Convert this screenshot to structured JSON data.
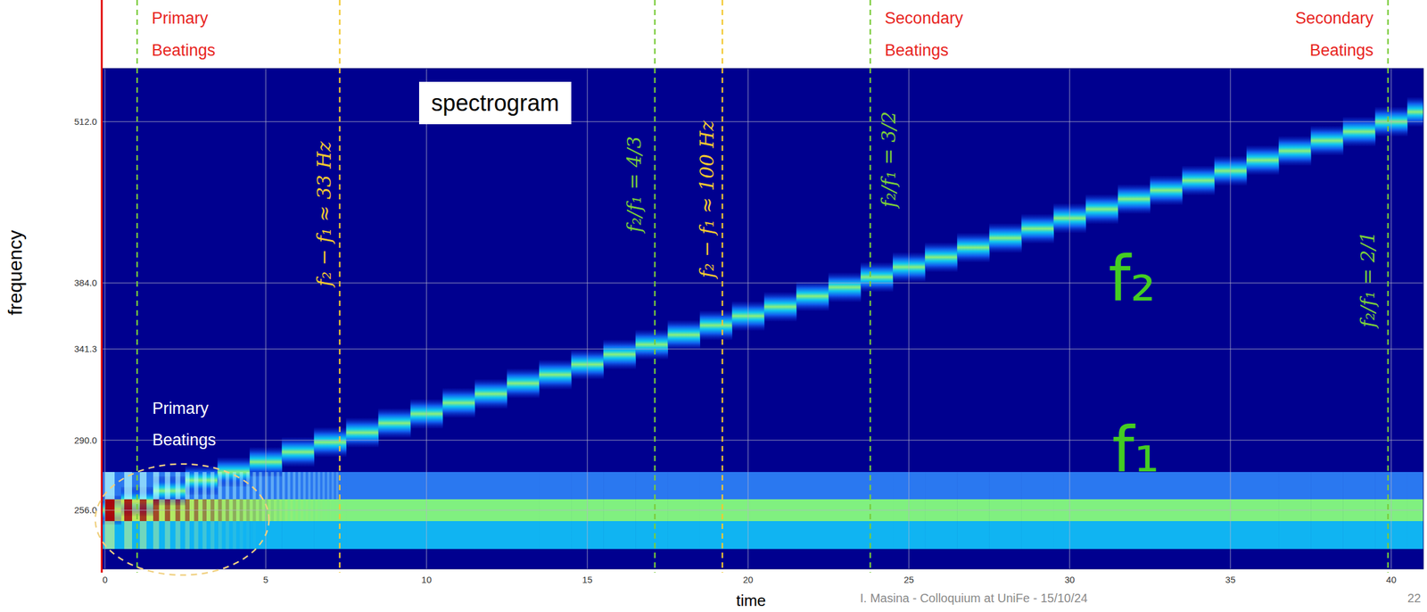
{
  "chart_data": {
    "type": "spectrogram",
    "title": "spectrogram",
    "x_label": "time",
    "y_label": "frequency",
    "x": [
      0,
      1,
      2,
      3,
      4,
      5,
      6,
      7,
      8,
      9,
      10,
      11,
      12,
      13,
      14,
      15,
      16,
      17,
      18,
      19,
      20,
      21,
      22,
      23,
      24,
      25,
      26,
      27,
      28,
      29,
      30,
      31,
      32,
      33,
      34,
      35,
      36,
      37,
      38,
      39,
      40,
      41
    ],
    "series": [
      {
        "name": "f₁",
        "color": "#80f080",
        "values": [
          256,
          256,
          256,
          256,
          256,
          256,
          256,
          256,
          256,
          256,
          256,
          256,
          256,
          256,
          256,
          256,
          256,
          256,
          256,
          256,
          256,
          256,
          256,
          256,
          256,
          256,
          256,
          256,
          256,
          256,
          256,
          256,
          256,
          256,
          256,
          256,
          256,
          256,
          256,
          256,
          256,
          256
        ]
      },
      {
        "name": "f₂",
        "color": "#8cf07a",
        "values": [
          256,
          260,
          265,
          270,
          274,
          279,
          284,
          289,
          294,
          299,
          304,
          310,
          315,
          321,
          326,
          332,
          338,
          344,
          350,
          356,
          362,
          368,
          375,
          381,
          388,
          395,
          402,
          409,
          416,
          423,
          431,
          438,
          446,
          453,
          461,
          469,
          478,
          486,
          495,
          503,
          512,
          521
        ]
      }
    ],
    "xlim": [
      -0.1,
      41
    ],
    "ylim": [
      230.5,
      563
    ],
    "xticks": [
      0,
      5,
      10,
      15,
      20,
      25,
      30,
      35,
      40
    ],
    "yticks": [
      {
        "value": 256,
        "label": "256.0"
      },
      {
        "value": 290,
        "label": "290.0"
      },
      341.3,
      {
        "value": 384,
        "label": "384.0"
      },
      {
        "value": 512,
        "label": "512.0"
      }
    ],
    "log": "y",
    "grid": true,
    "annotations": [
      {
        "type": "vline",
        "x": 1.0,
        "color": "#7acc3a"
      },
      {
        "type": "vline",
        "x": 7.3,
        "color": "#f2c830",
        "text": "f₂ − f₁ ≈ 33 Hz"
      },
      {
        "type": "vline",
        "x": 17.1,
        "color": "#7acc3a",
        "text": "f₂/f₁ = 4/3"
      },
      {
        "type": "vline",
        "x": 19.2,
        "color": "#f2c830",
        "text": "f₂ − f₁ ≈ 100 Hz"
      },
      {
        "type": "vline",
        "x": 23.8,
        "color": "#7acc3a",
        "text": "f₂/f₁ = 3/2"
      },
      {
        "type": "vline",
        "x": 39.9,
        "color": "#7acc3a",
        "text": "f₂/f₁ = 2/1"
      },
      {
        "type": "header",
        "text": "Primary Beatings",
        "color": "#e8251f"
      },
      {
        "type": "header",
        "text": "Secondary Beatings",
        "color": "#e8251f"
      },
      {
        "type": "header",
        "text": "Secondary Beatings",
        "color": "#e8251f"
      },
      {
        "type": "ellipse",
        "text": "Primary Beatings",
        "x": [
          -0.3,
          5.1
        ],
        "y": [
          228,
          278
        ],
        "color": "#f0d080"
      }
    ],
    "footer": "I. Masina - Colloquium at UniFe - 15/10/24",
    "page_number": "22"
  }
}
